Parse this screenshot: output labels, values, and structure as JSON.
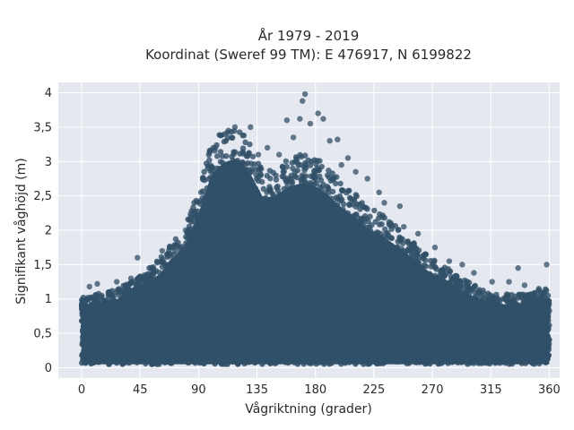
{
  "chart_data": {
    "type": "scatter",
    "title": "År 1979 - 2019",
    "subtitle": "Koordinat (Sweref 99 TM): E 476917, N 6199822",
    "xlabel": "Vågriktning (grader)",
    "ylabel": "Signifikant våghöjd (m)",
    "xlim": [
      -18,
      368
    ],
    "ylim": [
      -0.15,
      4.15
    ],
    "x_ticks": [
      0,
      45,
      90,
      135,
      180,
      225,
      270,
      315,
      360
    ],
    "x_tick_labels": [
      "0",
      "45",
      "90",
      "135",
      "180",
      "225",
      "270",
      "315",
      "360"
    ],
    "y_ticks": [
      0,
      0.5,
      1,
      1.5,
      2,
      2.5,
      3,
      3.5,
      4
    ],
    "y_tick_labels": [
      "0",
      "0,5",
      "1",
      "1,5",
      "2",
      "2,5",
      "3",
      "3,5",
      "4"
    ],
    "grid": true,
    "marker_color": "#2f5068",
    "background_color": "#e5e8ef",
    "upper_envelope": {
      "x": [
        0,
        10,
        20,
        30,
        40,
        50,
        60,
        70,
        80,
        90,
        100,
        110,
        120,
        130,
        140,
        150,
        160,
        170,
        180,
        190,
        200,
        210,
        220,
        230,
        240,
        250,
        260,
        270,
        280,
        290,
        300,
        310,
        320,
        330,
        340,
        350,
        360
      ],
      "y": [
        1.0,
        1.05,
        1.1,
        1.15,
        1.25,
        1.4,
        1.55,
        1.8,
        2.05,
        2.55,
        3.2,
        3.4,
        3.45,
        3.2,
        2.8,
        2.85,
        3.0,
        3.05,
        3.0,
        2.85,
        2.65,
        2.5,
        2.3,
        2.2,
        2.05,
        1.9,
        1.7,
        1.55,
        1.45,
        1.3,
        1.2,
        1.1,
        1.05,
        1.05,
        1.05,
        1.1,
        1.15
      ]
    },
    "lower_bound": 0.05,
    "outliers": [
      {
        "x": 12,
        "y": 1.22
      },
      {
        "x": 27,
        "y": 1.25
      },
      {
        "x": 38,
        "y": 1.3
      },
      {
        "x": 43,
        "y": 1.6
      },
      {
        "x": 52,
        "y": 1.45
      },
      {
        "x": 62,
        "y": 1.7
      },
      {
        "x": 80,
        "y": 2.0
      },
      {
        "x": 97,
        "y": 2.9
      },
      {
        "x": 103,
        "y": 3.2
      },
      {
        "x": 107,
        "y": 3.38
      },
      {
        "x": 113,
        "y": 3.45
      },
      {
        "x": 118,
        "y": 3.5
      },
      {
        "x": 124,
        "y": 3.38
      },
      {
        "x": 130,
        "y": 3.5
      },
      {
        "x": 136,
        "y": 3.1
      },
      {
        "x": 143,
        "y": 3.2
      },
      {
        "x": 152,
        "y": 3.1
      },
      {
        "x": 158,
        "y": 3.6
      },
      {
        "x": 163,
        "y": 3.35
      },
      {
        "x": 168,
        "y": 3.62
      },
      {
        "x": 170,
        "y": 3.88
      },
      {
        "x": 172,
        "y": 3.98
      },
      {
        "x": 176,
        "y": 3.55
      },
      {
        "x": 182,
        "y": 3.7
      },
      {
        "x": 186,
        "y": 3.62
      },
      {
        "x": 191,
        "y": 3.3
      },
      {
        "x": 197,
        "y": 3.32
      },
      {
        "x": 205,
        "y": 3.05
      },
      {
        "x": 211,
        "y": 2.85
      },
      {
        "x": 220,
        "y": 2.75
      },
      {
        "x": 229,
        "y": 2.55
      },
      {
        "x": 233,
        "y": 2.4
      },
      {
        "x": 245,
        "y": 2.35
      },
      {
        "x": 259,
        "y": 1.95
      },
      {
        "x": 272,
        "y": 1.75
      },
      {
        "x": 283,
        "y": 1.55
      },
      {
        "x": 293,
        "y": 1.5
      },
      {
        "x": 302,
        "y": 1.38
      },
      {
        "x": 316,
        "y": 1.25
      },
      {
        "x": 329,
        "y": 1.25
      },
      {
        "x": 336,
        "y": 1.45
      },
      {
        "x": 352,
        "y": 1.15
      },
      {
        "x": 358,
        "y": 1.5
      },
      {
        "x": 341,
        "y": 1.2
      },
      {
        "x": 6,
        "y": 1.18
      },
      {
        "x": 248,
        "y": 2.05
      },
      {
        "x": 200,
        "y": 2.95
      }
    ]
  }
}
